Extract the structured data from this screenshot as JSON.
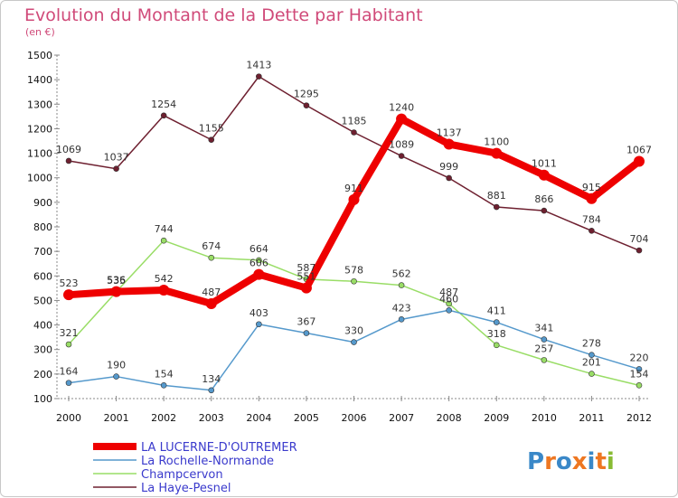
{
  "chart_data": {
    "type": "line",
    "title": "Evolution du Montant de la Dette par Habitant",
    "subtitle": "(en €)",
    "x": [
      "2000",
      "2001",
      "2002",
      "2003",
      "2004",
      "2005",
      "2006",
      "2007",
      "2008",
      "2009",
      "2010",
      "2011",
      "2012"
    ],
    "ylim": [
      100,
      1500
    ],
    "yticks": [
      100,
      200,
      300,
      400,
      500,
      600,
      700,
      800,
      900,
      1000,
      1100,
      1200,
      1300,
      1400,
      1500
    ],
    "grid": false,
    "legend_position": "bottom-left",
    "series": [
      {
        "name": "La Haye-Pesnel",
        "color": "#6e2030",
        "values": [
          1069,
          1037,
          1254,
          1155,
          1413,
          1295,
          1185,
          1089,
          999,
          881,
          866,
          784,
          704
        ]
      },
      {
        "name": "Champcervon",
        "color": "#99dd66",
        "values": [
          321,
          535,
          744,
          674,
          664,
          587,
          578,
          562,
          487,
          318,
          257,
          201,
          154
        ]
      },
      {
        "name": "La Rochelle-Normande",
        "color": "#5599cc",
        "values": [
          164,
          190,
          154,
          134,
          403,
          367,
          330,
          423,
          460,
          411,
          341,
          278,
          220
        ]
      },
      {
        "name": "LA LUCERNE-D'OUTREMER",
        "color": "#ee0000",
        "values": [
          523,
          536,
          542,
          487,
          606,
          551,
          911,
          1240,
          1137,
          1100,
          1011,
          915,
          1067
        ]
      }
    ],
    "legend_order": [
      "LA LUCERNE-D'OUTREMER",
      "La Rochelle-Normande",
      "Champcervon",
      "La Haye-Pesnel"
    ]
  },
  "logo": {
    "text": "Proxiti",
    "letters": [
      "P",
      "r",
      "o",
      "x",
      "i",
      "t",
      "i"
    ],
    "letter_colors": [
      "#3a88c8",
      "#ee7722",
      "#3a88c8",
      "#ee7722",
      "#3a88c8",
      "#ee7722",
      "#88bb33"
    ]
  }
}
